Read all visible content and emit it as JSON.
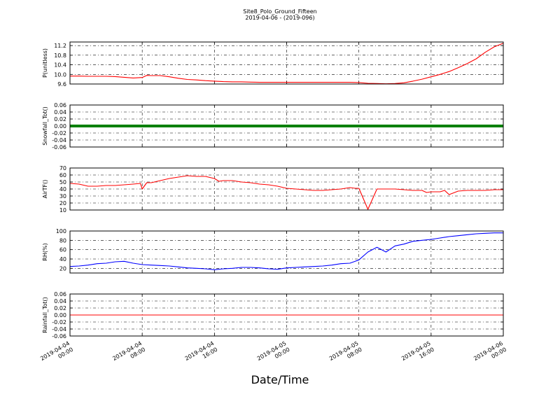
{
  "figure": {
    "title": "Site8_Polo_Ground_Fifteen",
    "subtitle": "2019-04-06 - (2019-096)",
    "xlabel": "Date/Time"
  },
  "chart_data": [
    {
      "type": "line",
      "ylabel": "P(unitless)",
      "ylim": [
        9.6,
        11.35
      ],
      "yticks": [
        "9.6",
        "10.0",
        "10.4",
        "10.8",
        "11.2"
      ],
      "ytick_values": [
        9.6,
        10.0,
        10.4,
        10.8,
        11.2
      ],
      "grid": true,
      "series": [
        {
          "color": "#ff0000",
          "x_hours": [
            0,
            1,
            2,
            3,
            4,
            5,
            6,
            7,
            8,
            8.5,
            9,
            10,
            11,
            12,
            13,
            14,
            15,
            16,
            17,
            18,
            19,
            20,
            21,
            22,
            23,
            24,
            25,
            26,
            27,
            28,
            29,
            30,
            31,
            32,
            33,
            34,
            35,
            36,
            37,
            38,
            39,
            40,
            41,
            42,
            43,
            44,
            45,
            46,
            47,
            48
          ],
          "values": [
            9.93,
            9.93,
            9.92,
            9.92,
            9.92,
            9.91,
            9.88,
            9.85,
            9.87,
            9.96,
            9.95,
            9.95,
            9.9,
            9.84,
            9.79,
            9.77,
            9.74,
            9.72,
            9.7,
            9.69,
            9.69,
            9.68,
            9.67,
            9.67,
            9.67,
            9.67,
            9.67,
            9.67,
            9.67,
            9.67,
            9.67,
            9.67,
            9.67,
            9.66,
            9.63,
            9.62,
            9.61,
            9.62,
            9.65,
            9.72,
            9.8,
            9.9,
            10.0,
            10.12,
            10.28,
            10.45,
            10.65,
            10.92,
            11.15,
            11.3
          ]
        }
      ]
    },
    {
      "type": "line",
      "ylabel": "Snowfall_Tot()",
      "ylim": [
        -0.06,
        0.06
      ],
      "yticks": [
        "0.06",
        "0.04",
        "0.02",
        "0.00",
        "-0.02",
        "-0.04",
        "-0.06"
      ],
      "ytick_values": [
        0.06,
        0.04,
        0.02,
        0.0,
        -0.02,
        -0.04,
        -0.06
      ],
      "grid": true,
      "series": [
        {
          "color": "#008000",
          "style": "thick",
          "x_hours": [
            0,
            48
          ],
          "values": [
            0,
            0
          ]
        }
      ]
    },
    {
      "type": "line",
      "ylabel": "AirTF()",
      "ylim": [
        10,
        70
      ],
      "yticks": [
        "70",
        "60",
        "50",
        "40",
        "30",
        "20",
        "10"
      ],
      "ytick_values": [
        70,
        60,
        50,
        40,
        30,
        20,
        10
      ],
      "grid": true,
      "series": [
        {
          "color": "#ff0000",
          "x_hours": [
            0,
            1,
            2,
            3,
            4,
            5,
            6,
            7,
            7.8,
            8.0,
            8.5,
            9,
            10,
            11,
            12,
            13,
            14,
            15,
            16,
            16.5,
            17,
            18,
            19,
            20,
            21,
            22,
            23,
            24,
            25,
            26,
            27,
            28,
            29,
            30,
            31,
            31.6,
            32,
            33,
            34,
            35,
            36,
            37,
            38,
            38.5,
            39,
            39.5,
            40,
            41,
            41.5,
            42,
            43,
            44,
            45,
            46,
            47,
            48
          ],
          "values": [
            48,
            47,
            44,
            44,
            45,
            45,
            46,
            47,
            48,
            40,
            49,
            49,
            52,
            55,
            57,
            59,
            58,
            58,
            55,
            51,
            52,
            52,
            50,
            49,
            47,
            46,
            44,
            41,
            40,
            39,
            38,
            38,
            39,
            40,
            42,
            41,
            41,
            11,
            40,
            40,
            40,
            39,
            38,
            38,
            38,
            35,
            36,
            36,
            38,
            32,
            37,
            38,
            38,
            38,
            39,
            39
          ]
        }
      ]
    },
    {
      "type": "line",
      "ylabel": "RH(%)",
      "ylim": [
        10,
        100
      ],
      "yticks": [
        "100",
        "80",
        "60",
        "40",
        "20"
      ],
      "ytick_values": [
        100,
        80,
        60,
        40,
        20
      ],
      "grid": true,
      "series": [
        {
          "color": "#0000ff",
          "x_hours": [
            0,
            1,
            2,
            3,
            4,
            5,
            6,
            7,
            8,
            9,
            10,
            11,
            12,
            13,
            14,
            15,
            16,
            17,
            18,
            19,
            20,
            21,
            22,
            23,
            24,
            25,
            26,
            27,
            28,
            29,
            30,
            31,
            32,
            33,
            34,
            35,
            36,
            37,
            38,
            39,
            40,
            41,
            42,
            43,
            44,
            45,
            46,
            47,
            48
          ],
          "values": [
            24,
            25,
            27,
            30,
            31,
            34,
            35,
            31,
            28,
            27,
            26,
            25,
            23,
            21,
            20,
            19,
            17,
            19,
            20,
            22,
            22,
            21,
            19,
            18,
            21,
            22,
            23,
            24,
            25,
            27,
            30,
            31,
            38,
            55,
            65,
            55,
            68,
            72,
            78,
            80,
            82,
            85,
            88,
            90,
            92,
            94,
            95,
            96,
            96
          ]
        }
      ]
    },
    {
      "type": "line",
      "ylabel": "Rainfall_Tot()",
      "ylim": [
        -0.06,
        0.06
      ],
      "yticks": [
        "0.06",
        "0.04",
        "0.02",
        "0.00",
        "-0.02",
        "-0.04",
        "-0.06"
      ],
      "ytick_values": [
        0.06,
        0.04,
        0.02,
        0.0,
        -0.02,
        -0.04,
        -0.06
      ],
      "grid": true,
      "series": [
        {
          "color": "#ff0000",
          "x_hours": [
            0,
            48
          ],
          "values": [
            0,
            0
          ]
        }
      ]
    }
  ],
  "x_axis": {
    "range_hours": [
      0,
      48
    ],
    "ticks": [
      {
        "hour": 0,
        "line1": "2019-04-04",
        "line2": "00:00"
      },
      {
        "hour": 8,
        "line1": "2019-04-04",
        "line2": "08:00"
      },
      {
        "hour": 16,
        "line1": "2019-04-04",
        "line2": "16:00"
      },
      {
        "hour": 24,
        "line1": "2019-04-05",
        "line2": "00:00"
      },
      {
        "hour": 32,
        "line1": "2019-04-05",
        "line2": "08:00"
      },
      {
        "hour": 40,
        "line1": "2019-04-05",
        "line2": "16:00"
      },
      {
        "hour": 48,
        "line1": "2019-04-06",
        "line2": "00:00"
      }
    ]
  }
}
